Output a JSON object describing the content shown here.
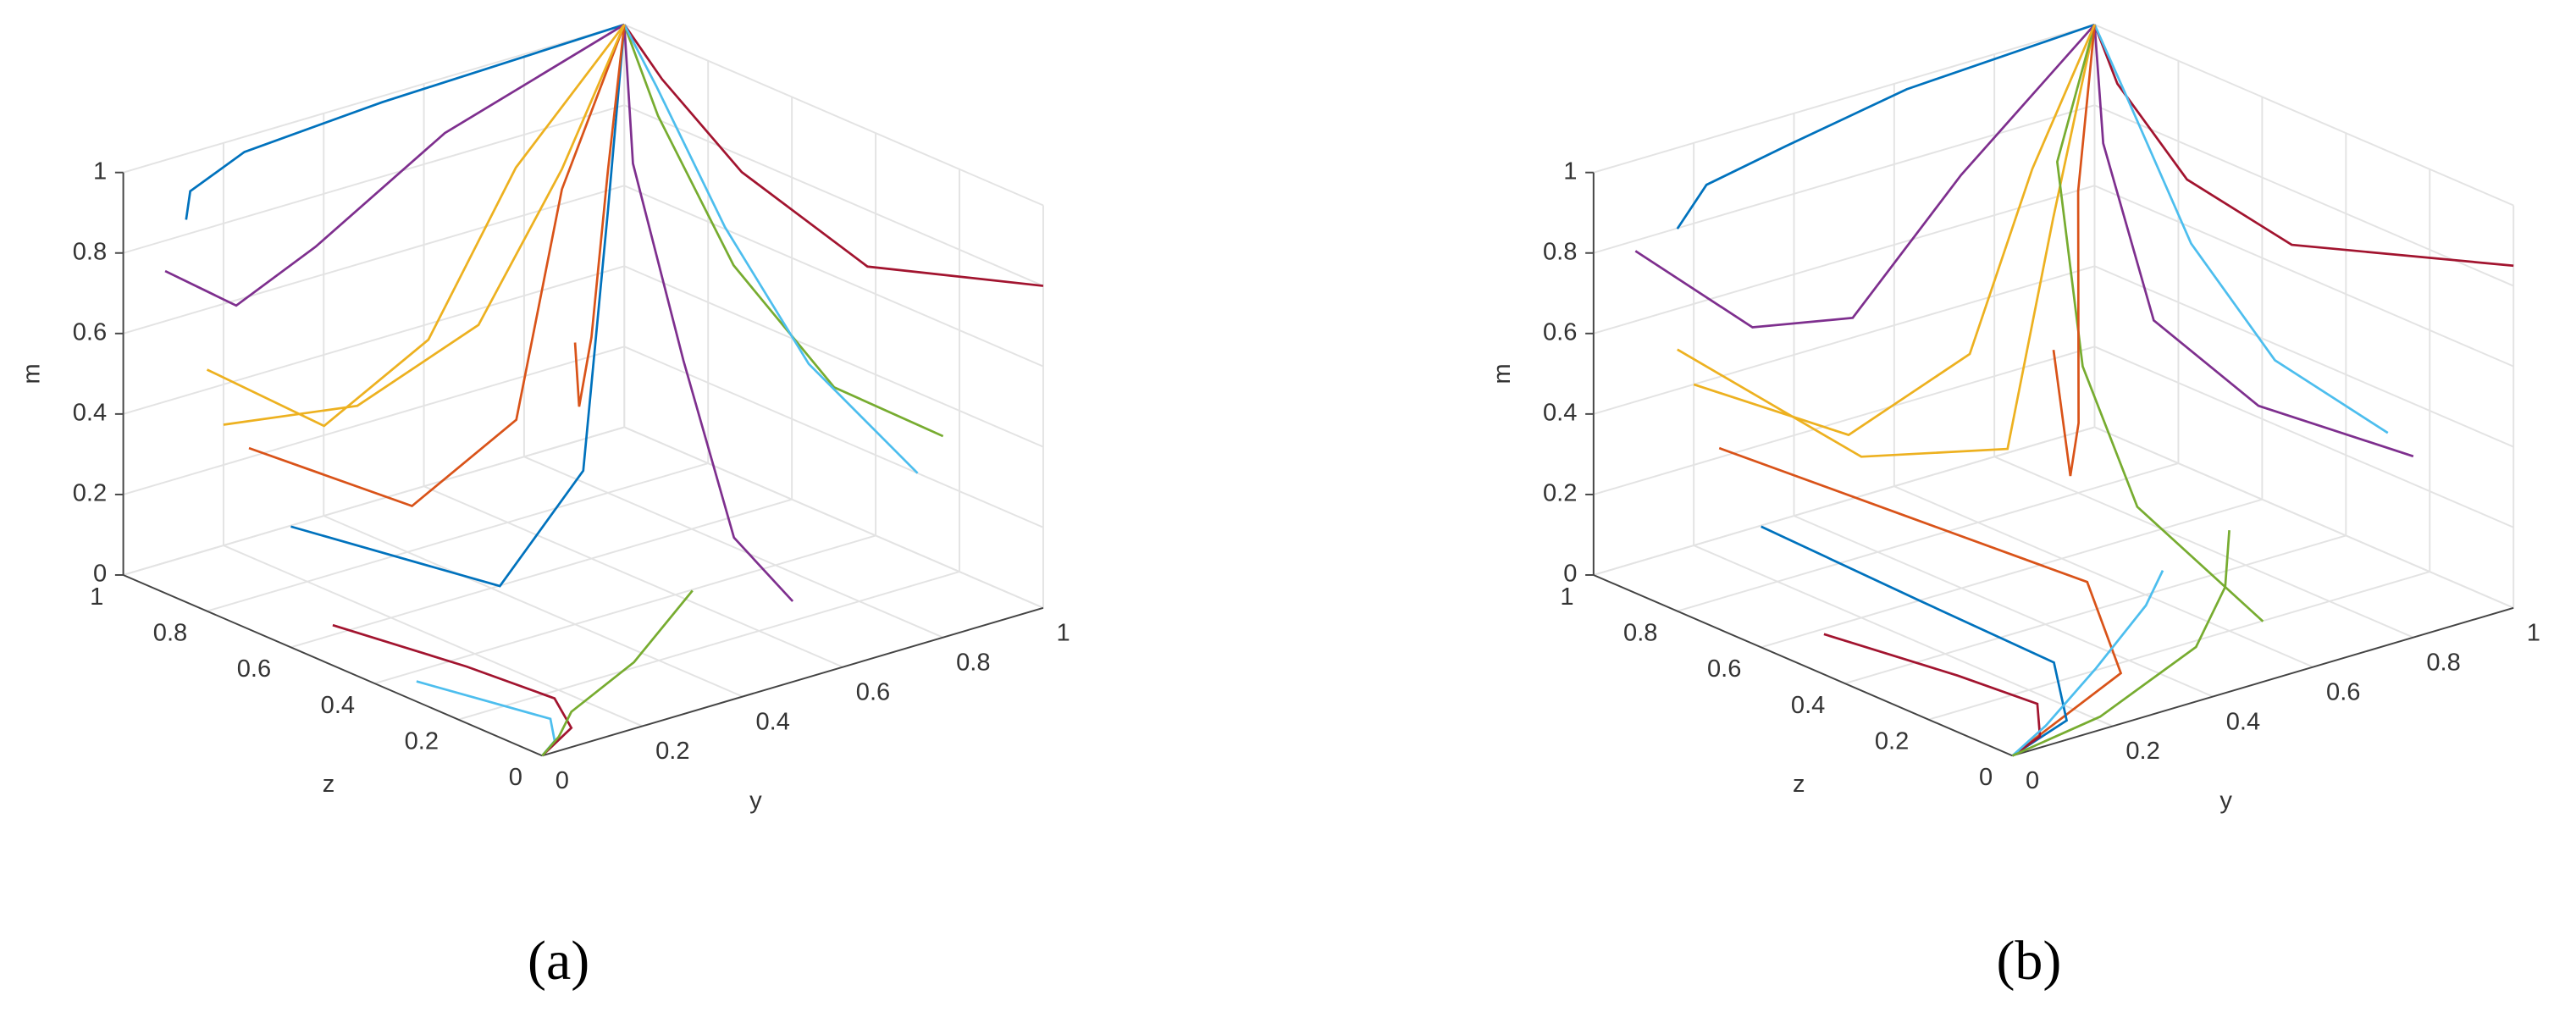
{
  "chart_data": [
    {
      "type": "line3d",
      "label": "(a)",
      "ylabel": "y",
      "zlabel": "z",
      "mlabel": "m",
      "ylim": [
        0,
        1
      ],
      "zlim": [
        0,
        1
      ],
      "mlim": [
        0,
        1
      ],
      "yticks": [
        0,
        0.2,
        0.4,
        0.6,
        0.8,
        1
      ],
      "zticks": [
        0,
        0.2,
        0.4,
        0.6,
        0.8,
        1
      ],
      "mticks": [
        0,
        0.2,
        0.4,
        0.6,
        0.8,
        1
      ],
      "grid": true,
      "series": [
        {
          "color": "#0072bd",
          "y": [
            0,
            0.05,
            0.2,
            0.5,
            1
          ],
          "z": [
            0.85,
            0.9,
            0.95,
            0.98,
            1
          ],
          "m": [
            0.95,
            0.98,
            1,
            1,
            1
          ]
        },
        {
          "color": "#7e2f8e",
          "y": [
            0,
            0.1,
            0.3,
            0.6,
            1
          ],
          "z": [
            0.9,
            0.85,
            0.9,
            0.95,
            1
          ],
          "m": [
            0.8,
            0.7,
            0.75,
            0.9,
            1
          ]
        },
        {
          "color": "#edb120",
          "y": [
            0,
            0.15,
            0.4,
            0.7,
            1
          ],
          "z": [
            0.8,
            0.7,
            0.75,
            0.9,
            1
          ],
          "m": [
            0.6,
            0.45,
            0.55,
            0.8,
            1
          ]
        },
        {
          "color": "#d95319",
          "y": [
            0,
            0.2,
            0.45,
            0.75,
            1
          ],
          "z": [
            0.7,
            0.55,
            0.6,
            0.85,
            1
          ],
          "m": [
            0.45,
            0.3,
            0.4,
            0.75,
            1
          ]
        },
        {
          "color": "#0072bd",
          "y": [
            0,
            0.25,
            0.5,
            0.8,
            1
          ],
          "z": [
            0.6,
            0.4,
            0.5,
            0.8,
            1
          ],
          "m": [
            0.3,
            0.15,
            0.3,
            0.7,
            1
          ]
        },
        {
          "color": "#a2142f",
          "y": [
            0,
            0.1,
            0.15,
            0.1,
            0
          ],
          "z": [
            0.5,
            0.3,
            0.15,
            0.05,
            0
          ],
          "m": [
            0.1,
            0.05,
            0.02,
            0.01,
            0
          ]
        },
        {
          "color": "#4dbeee",
          "y": [
            0,
            0.05,
            0.1,
            0.05,
            0
          ],
          "z": [
            0.3,
            0.2,
            0.1,
            0.03,
            0
          ],
          "m": [
            0.05,
            0.03,
            0.01,
            0.005,
            0
          ]
        },
        {
          "color": "#77ac30",
          "y": [
            0.3,
            0.2,
            0.1,
            0.05,
            0
          ],
          "z": [
            0,
            0.02,
            0.05,
            0.02,
            0
          ],
          "m": [
            0.3,
            0.15,
            0.05,
            0.02,
            0
          ]
        },
        {
          "color": "#7e2f8e",
          "y": [
            0.5,
            0.55,
            0.7,
            0.85,
            1
          ],
          "z": [
            0,
            0.2,
            0.5,
            0.8,
            1
          ],
          "m": [
            0.2,
            0.25,
            0.5,
            0.8,
            1
          ]
        },
        {
          "color": "#77ac30",
          "y": [
            0.8,
            0.75,
            0.8,
            0.9,
            1
          ],
          "z": [
            0,
            0.2,
            0.5,
            0.8,
            1
          ],
          "m": [
            0.5,
            0.55,
            0.7,
            0.9,
            1
          ]
        },
        {
          "color": "#a2142f",
          "y": [
            1,
            0.9,
            0.9,
            0.95,
            1
          ],
          "z": [
            0,
            0.3,
            0.6,
            0.85,
            1
          ],
          "m": [
            0.8,
            0.75,
            0.85,
            0.95,
            1
          ]
        },
        {
          "color": "#4dbeee",
          "y": [
            1,
            0.95,
            0.95,
            0.98,
            1
          ],
          "z": [
            0.3,
            0.5,
            0.7,
            0.9,
            1
          ],
          "m": [
            0.2,
            0.4,
            0.65,
            0.9,
            1
          ]
        },
        {
          "color": "#d95319",
          "y": [
            0.4,
            0.45,
            0.6,
            0.8,
            1
          ],
          "z": [
            0.4,
            0.45,
            0.6,
            0.8,
            1
          ],
          "m": [
            0.7,
            0.5,
            0.55,
            0.8,
            1
          ]
        },
        {
          "color": "#edb120",
          "y": [
            0.2,
            0.3,
            0.5,
            0.75,
            1
          ],
          "z": [
            1,
            0.8,
            0.75,
            0.85,
            1
          ],
          "m": [
            0.3,
            0.4,
            0.55,
            0.8,
            1
          ]
        }
      ]
    },
    {
      "type": "line3d",
      "label": "(b)",
      "ylabel": "y",
      "zlabel": "z",
      "mlabel": "m",
      "ylim": [
        0,
        1
      ],
      "zlim": [
        0,
        1
      ],
      "mlim": [
        0,
        1
      ],
      "yticks": [
        0,
        0.2,
        0.4,
        0.6,
        0.8,
        1
      ],
      "zticks": [
        0,
        0.2,
        0.4,
        0.6,
        0.8,
        1
      ],
      "mticks": [
        0,
        0.2,
        0.4,
        0.6,
        0.8,
        1
      ],
      "grid": true,
      "series": [
        {
          "color": "#0072bd",
          "y": [
            0,
            0.1,
            0.3,
            0.6,
            1
          ],
          "z": [
            0.8,
            0.85,
            0.9,
            0.97,
            1
          ],
          "m": [
            0.95,
            1,
            1,
            1,
            1
          ]
        },
        {
          "color": "#7e2f8e",
          "y": [
            0,
            0.15,
            0.35,
            0.65,
            1
          ],
          "z": [
            0.9,
            0.8,
            0.8,
            0.9,
            1
          ],
          "m": [
            0.85,
            0.65,
            0.6,
            0.8,
            1
          ]
        },
        {
          "color": "#edb120",
          "y": [
            0,
            0.2,
            0.45,
            0.75,
            1
          ],
          "z": [
            0.8,
            0.6,
            0.55,
            0.8,
            1
          ],
          "m": [
            0.65,
            0.4,
            0.35,
            0.7,
            1
          ]
        },
        {
          "color": "#d95319",
          "y": [
            0,
            0.2,
            0.4,
            0.3,
            0
          ],
          "z": [
            0.7,
            0.5,
            0.3,
            0.1,
            0
          ],
          "m": [
            0.45,
            0.3,
            0.15,
            0.05,
            0
          ]
        },
        {
          "color": "#0072bd",
          "y": [
            0,
            0.15,
            0.25,
            0.15,
            0
          ],
          "z": [
            0.6,
            0.4,
            0.2,
            0.05,
            0
          ],
          "m": [
            0.3,
            0.15,
            0.05,
            0.01,
            0
          ]
        },
        {
          "color": "#a2142f",
          "y": [
            0,
            0.1,
            0.15,
            0.08,
            0
          ],
          "z": [
            0.45,
            0.25,
            0.12,
            0.03,
            0
          ],
          "m": [
            0.1,
            0.05,
            0.02,
            0.005,
            0
          ]
        },
        {
          "color": "#4dbeee",
          "y": [
            0.3,
            0.35,
            0.25,
            0.1,
            0
          ],
          "z": [
            0,
            0.1,
            0.1,
            0.04,
            0
          ],
          "m": [
            0.35,
            0.2,
            0.08,
            0.02,
            0
          ]
        },
        {
          "color": "#77ac30",
          "y": [
            0.5,
            0.5,
            0.6,
            0.8,
            1
          ],
          "z": [
            0,
            0.3,
            0.55,
            0.85,
            1
          ],
          "m": [
            0.15,
            0.3,
            0.5,
            0.8,
            1
          ]
        },
        {
          "color": "#7e2f8e",
          "y": [
            0.8,
            0.7,
            0.7,
            0.85,
            1
          ],
          "z": [
            0,
            0.25,
            0.5,
            0.8,
            1
          ],
          "m": [
            0.45,
            0.5,
            0.6,
            0.85,
            1
          ]
        },
        {
          "color": "#a2142f",
          "y": [
            1,
            0.85,
            0.85,
            0.92,
            1
          ],
          "z": [
            0,
            0.35,
            0.6,
            0.85,
            1
          ],
          "m": [
            0.85,
            0.8,
            0.85,
            0.95,
            1
          ]
        },
        {
          "color": "#4dbeee",
          "y": [
            1,
            0.9,
            0.9,
            0.96,
            1
          ],
          "z": [
            0.3,
            0.45,
            0.65,
            0.88,
            1
          ],
          "m": [
            0.3,
            0.45,
            0.65,
            0.9,
            1
          ]
        },
        {
          "color": "#d95319",
          "y": [
            0.5,
            0.45,
            0.55,
            0.8,
            1
          ],
          "z": [
            0.5,
            0.4,
            0.5,
            0.8,
            1
          ],
          "m": [
            0.6,
            0.35,
            0.4,
            0.75,
            1
          ]
        },
        {
          "color": "#edb120",
          "y": [
            0.2,
            0.3,
            0.5,
            0.75,
            1
          ],
          "z": [
            1,
            0.75,
            0.7,
            0.85,
            1
          ],
          "m": [
            0.4,
            0.35,
            0.5,
            0.8,
            1
          ]
        },
        {
          "color": "#77ac30",
          "y": [
            0.6,
            0.55,
            0.45,
            0.2,
            0
          ],
          "z": [
            0.2,
            0.15,
            0.1,
            0.03,
            0
          ],
          "m": [
            0.25,
            0.15,
            0.06,
            0.01,
            0
          ]
        }
      ]
    }
  ]
}
